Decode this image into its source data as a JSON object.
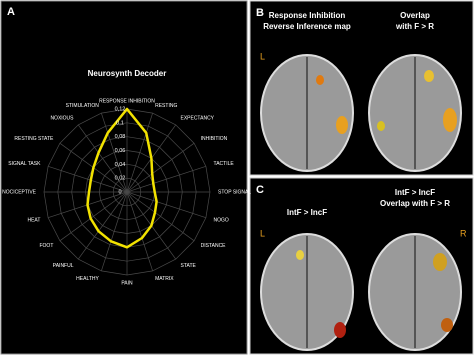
{
  "chart_data": {
    "type": "radar",
    "panel_label": "A",
    "title": "Neurosynth Decoder",
    "categories": [
      "RESPONSE INHIBITION",
      "RESTING",
      "EXPECTANCY",
      "INHIBITION",
      "TACTILE",
      "STOP SIGNAL",
      "NOGO",
      "DISTANCE",
      "STATE",
      "MATRIX",
      "PAIN",
      "HEALTHY",
      "PAINFUL",
      "FOOT",
      "HEAT",
      "NOCICEPTIVE",
      "SIGNAL TASK",
      "RESTING STATE",
      "NOXIOUS",
      "STIMULATION"
    ],
    "values": [
      0.12,
      0.09,
      0.06,
      0.045,
      0.04,
      0.04,
      0.045,
      0.05,
      0.06,
      0.07,
      0.08,
      0.075,
      0.07,
      0.065,
      0.06,
      0.055,
      0.055,
      0.06,
      0.07,
      0.09
    ],
    "color": "#f2e200",
    "ylim": [
      0,
      0.12
    ],
    "yticks": [
      0,
      {
        "value": 0.02,
        "label": "0,02"
      },
      {
        "value": 0.04,
        "label": "0,04"
      },
      {
        "value": 0.06,
        "label": "0,06"
      },
      {
        "value": 0.08,
        "label": "0,08"
      },
      {
        "value": 0.1,
        "label": "0,1"
      },
      {
        "value": 0.12,
        "label": "0,12"
      }
    ],
    "grid": true
  },
  "panel_b": {
    "label": "B",
    "left_caption": [
      "Response Inhibition",
      "Reverse Inference map"
    ],
    "right_caption": [
      "Overlap",
      "with F > R"
    ],
    "side_left": "L"
  },
  "panel_c": {
    "label": "C",
    "left_caption": [
      "IntF > IncF"
    ],
    "right_caption": [
      "IntF > IncF",
      "Overlap with F > R"
    ],
    "side_left": "L",
    "side_right": "R"
  }
}
